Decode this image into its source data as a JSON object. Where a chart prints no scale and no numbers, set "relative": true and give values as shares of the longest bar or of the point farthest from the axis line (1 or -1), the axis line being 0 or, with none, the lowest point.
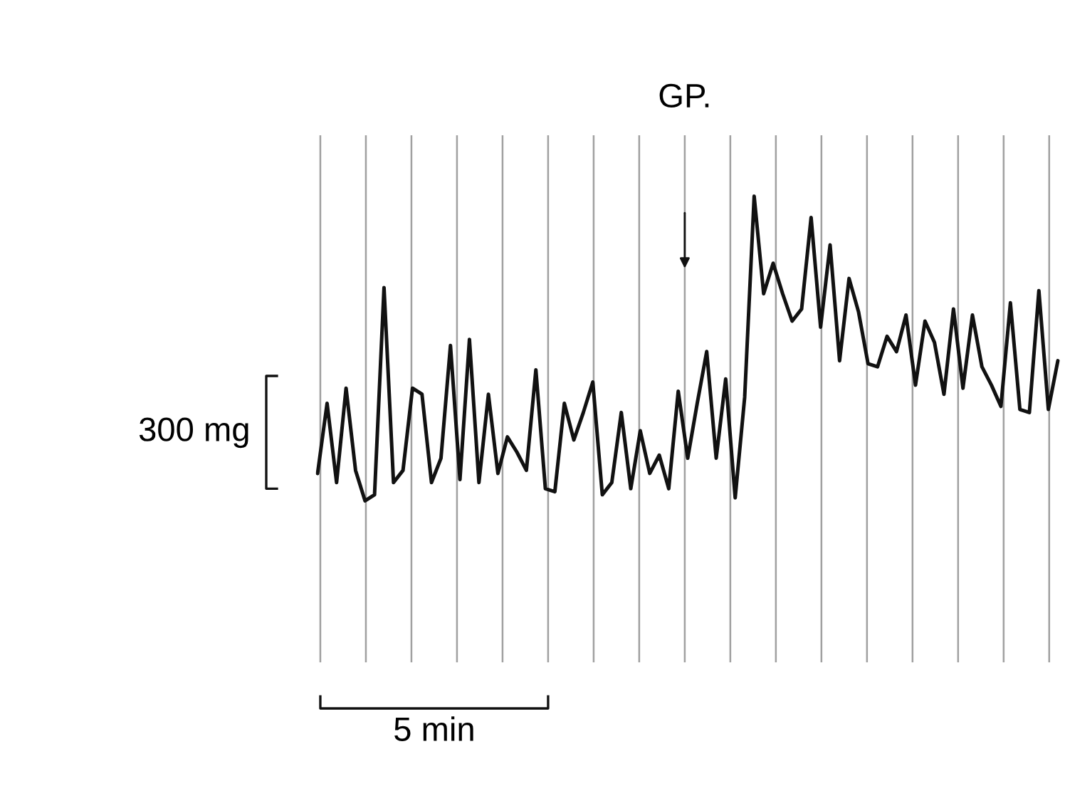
{
  "chart_data": {
    "type": "line",
    "relative": true,
    "grid": "x",
    "marker": "none",
    "line_style": "solid",
    "categories": [
      null,
      null,
      null,
      null,
      null,
      null,
      null,
      null,
      null,
      null,
      null,
      null,
      null,
      null,
      null,
      null,
      null,
      null,
      null,
      null,
      null,
      null,
      null,
      null,
      null,
      null,
      null,
      null,
      null,
      null,
      null,
      null,
      null,
      null,
      null,
      null,
      null,
      null,
      null,
      null,
      null,
      null,
      null,
      null,
      null,
      null,
      null,
      null,
      null,
      null,
      null,
      null,
      null,
      null,
      null,
      null,
      null,
      null,
      null,
      null,
      null,
      null,
      null,
      null,
      null,
      null,
      null,
      null,
      null,
      null,
      null,
      null,
      null,
      null,
      null,
      null,
      null,
      null,
      null
    ],
    "series": [
      {
        "color": "#111111",
        "values": [
          0.09,
          0.32,
          0.06,
          0.37,
          0.1,
          0.0,
          0.02,
          0.7,
          0.06,
          0.1,
          0.37,
          0.35,
          0.06,
          0.14,
          0.51,
          0.07,
          0.53,
          0.06,
          0.35,
          0.09,
          0.21,
          0.16,
          0.1,
          0.43,
          0.04,
          0.03,
          0.32,
          0.2,
          0.29,
          0.39,
          0.02,
          0.06,
          0.29,
          0.04,
          0.23,
          0.09,
          0.15,
          0.04,
          0.36,
          0.14,
          0.32,
          0.49,
          0.14,
          0.4,
          0.01,
          0.34,
          1.0,
          0.68,
          0.78,
          0.68,
          0.59,
          0.63,
          0.93,
          0.57,
          0.84,
          0.46,
          0.73,
          0.62,
          0.45,
          0.44,
          0.54,
          0.49,
          0.61,
          0.38,
          0.59,
          0.52,
          0.35,
          0.63,
          0.37,
          0.61,
          0.44,
          0.38,
          0.31,
          0.65,
          0.3,
          0.29,
          0.69,
          0.3,
          0.46
        ]
      }
    ],
    "annotations": [
      "GP.",
      "300 mg",
      "5 min"
    ]
  }
}
